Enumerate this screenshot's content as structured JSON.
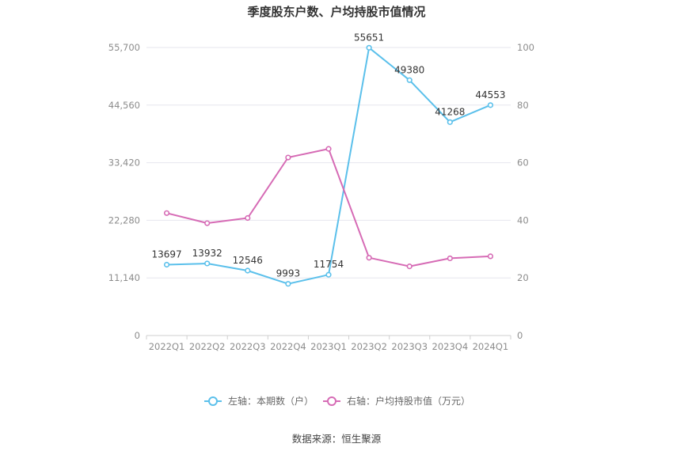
{
  "chart_data": {
    "type": "line",
    "title": "季度股东户数、户均持股市值情况",
    "categories": [
      "2022Q1",
      "2022Q2",
      "2022Q3",
      "2022Q4",
      "2023Q1",
      "2023Q2",
      "2023Q3",
      "2023Q4",
      "2024Q1"
    ],
    "left_axis": {
      "ticks": [
        0,
        11140,
        22280,
        33420,
        44560,
        55700
      ],
      "tick_labels": [
        "0",
        "11,140",
        "22,280",
        "33,420",
        "44,560",
        "55,700"
      ],
      "ylim": [
        0,
        55700
      ]
    },
    "right_axis": {
      "ticks": [
        0,
        20,
        40,
        60,
        80,
        100
      ],
      "tick_labels": [
        "0",
        "20",
        "40",
        "60",
        "80",
        "100"
      ],
      "ylim": [
        0,
        100
      ]
    },
    "series": [
      {
        "name": "左轴：本期数（户）",
        "axis": "left",
        "color": "#5bc0eb",
        "values": [
          13697,
          13932,
          12546,
          9993,
          11754,
          55651,
          49380,
          41268,
          44553
        ],
        "labels": [
          "13697",
          "13932",
          "12546",
          "9993",
          "11754",
          "55651",
          "49380",
          "41268",
          "44553"
        ]
      },
      {
        "name": "右轴：户均持股市值（万元）",
        "axis": "right",
        "color": "#d66bb5",
        "values": [
          42.5,
          39.0,
          40.8,
          61.8,
          64.8,
          27.0,
          24.0,
          26.8,
          27.5
        ]
      }
    ],
    "grid": true,
    "legend_position": "bottom"
  },
  "source": "数据来源：恒生聚源"
}
